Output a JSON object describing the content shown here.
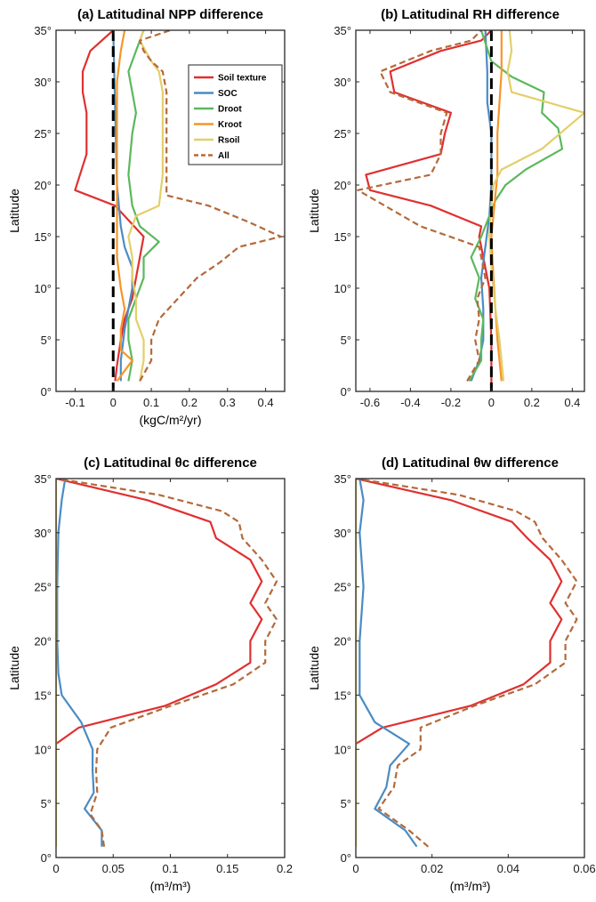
{
  "colors": {
    "soil_texture": "#e03030",
    "soc": "#4a8cc4",
    "droot": "#5cb85c",
    "kroot": "#f5962a",
    "rsoil": "#e3cf6a",
    "all": "#b5693a",
    "zero_line": "#000000"
  },
  "legend": {
    "entries": [
      {
        "key": "soil_texture",
        "label": "Soil texture",
        "style": "solid"
      },
      {
        "key": "soc",
        "label": "SOC",
        "style": "solid"
      },
      {
        "key": "droot",
        "label": "Droot",
        "style": "solid"
      },
      {
        "key": "kroot",
        "label": "Kroot",
        "style": "solid"
      },
      {
        "key": "rsoil",
        "label": "Rsoil",
        "style": "solid"
      },
      {
        "key": "all",
        "label": "All",
        "style": "dashed"
      }
    ]
  },
  "chart_data": [
    {
      "type": "line",
      "title": "(a) Latitudinal NPP difference",
      "xlabel": "(kgC/m²/yr)",
      "ylabel": "Latitude",
      "xlim": [
        -0.15,
        0.45
      ],
      "ylim": [
        0,
        35
      ],
      "xticks": [
        -0.1,
        0,
        0.1,
        0.2,
        0.3,
        0.4
      ],
      "xtick_labels": [
        "-0.1",
        "0",
        "0.1",
        "0.2",
        "0.3",
        "0.4"
      ],
      "yticks": [
        0,
        5,
        10,
        15,
        20,
        25,
        30,
        35
      ],
      "ytick_labels": [
        "0°",
        "5°",
        "10°",
        "15°",
        "20°",
        "25°",
        "30°",
        "35°"
      ],
      "zero_line": true,
      "legend": true,
      "series": [
        {
          "key": "soil_texture",
          "x": [
            0.005,
            0.01,
            0.02,
            0.03,
            0.05,
            0.06,
            0.08,
            0.005,
            -0.1,
            -0.07,
            -0.07,
            -0.08,
            -0.08,
            -0.06,
            0.0
          ],
          "y": [
            1,
            2.5,
            5,
            7,
            9,
            11,
            15,
            18,
            19.5,
            23,
            27,
            29,
            31,
            33,
            35
          ]
        },
        {
          "key": "soc",
          "x": [
            0.02,
            0.02,
            0.03,
            0.04,
            0.05,
            0.05,
            0.03,
            0.02,
            0.01,
            0.0
          ],
          "y": [
            1,
            3,
            6,
            8,
            10,
            12,
            14,
            16,
            20,
            35
          ]
        },
        {
          "key": "droot",
          "x": [
            0.04,
            0.05,
            0.04,
            0.04,
            0.06,
            0.08,
            0.08,
            0.12,
            0.07,
            0.05,
            0.04,
            0.05,
            0.06,
            0.05,
            0.04,
            0.06,
            0.07,
            0.08
          ],
          "y": [
            1,
            3,
            5,
            7,
            9,
            11,
            13,
            14.5,
            16,
            18,
            21,
            25,
            27,
            29,
            31,
            33,
            34,
            35
          ]
        },
        {
          "key": "kroot",
          "x": [
            0.01,
            0.03,
            0.05,
            0.02,
            0.02,
            0.03,
            0.02,
            0.01,
            0.01,
            0.01,
            0.02,
            0.03
          ],
          "y": [
            1,
            2,
            3,
            4,
            6,
            8,
            10,
            13,
            20,
            30,
            33,
            35
          ]
        },
        {
          "key": "rsoil",
          "x": [
            0.07,
            0.08,
            0.08,
            0.06,
            0.06,
            0.05,
            0.05,
            0.04,
            0.06,
            0.12,
            0.13,
            0.13,
            0.13,
            0.13,
            0.12,
            0.1,
            0.07,
            0.08
          ],
          "y": [
            1,
            3,
            5,
            7,
            9,
            11,
            13,
            15,
            17,
            18,
            21,
            25,
            27,
            29,
            31,
            32,
            34,
            35
          ]
        },
        {
          "key": "all",
          "x": [
            0.07,
            0.1,
            0.1,
            0.12,
            0.17,
            0.22,
            0.28,
            0.33,
            0.44,
            0.35,
            0.25,
            0.14,
            0.14,
            0.14,
            0.14,
            0.14,
            0.14,
            0.13,
            0.1,
            0.08,
            0.07,
            0.15
          ],
          "y": [
            1,
            3,
            5,
            7,
            9,
            11,
            12.5,
            14,
            15,
            16.5,
            18,
            19,
            21,
            23,
            25,
            27,
            29,
            31,
            32,
            33,
            34,
            35
          ]
        }
      ]
    },
    {
      "type": "line",
      "title": "(b) Latitudinal RH difference",
      "xlabel": "",
      "ylabel": "Latitude",
      "xlim": [
        -0.67,
        0.46
      ],
      "ylim": [
        0,
        35
      ],
      "xticks": [
        -0.6,
        -0.4,
        -0.2,
        0,
        0.2,
        0.4
      ],
      "xtick_labels": [
        "-0.6",
        "-0.4",
        "-0.2",
        "0",
        "0.2",
        "0.4"
      ],
      "yticks": [
        0,
        5,
        10,
        15,
        20,
        25,
        30,
        35
      ],
      "ytick_labels": [
        "0°",
        "5°",
        "10°",
        "15°",
        "20°",
        "25°",
        "30°",
        "35°"
      ],
      "zero_line": true,
      "legend": false,
      "series": [
        {
          "key": "soil_texture",
          "x": [
            0.0,
            0.0,
            -0.01,
            -0.03,
            -0.05,
            -0.06,
            -0.05,
            -0.3,
            -0.6,
            -0.62,
            -0.25,
            -0.23,
            -0.2,
            -0.48,
            -0.5,
            -0.25,
            -0.05,
            0.0
          ],
          "y": [
            0,
            5,
            10,
            12,
            14,
            15,
            16,
            18,
            19.5,
            21,
            23,
            25,
            27,
            29,
            31,
            33,
            34,
            35
          ]
        },
        {
          "key": "soc",
          "x": [
            -0.1,
            -0.06,
            -0.04,
            -0.04,
            -0.05,
            -0.03,
            -0.01,
            0.0,
            0.0,
            0.0,
            -0.02,
            -0.02,
            -0.02,
            -0.03
          ],
          "y": [
            1,
            3,
            5,
            8,
            11,
            14,
            17,
            20,
            22,
            25,
            28,
            30,
            31,
            35
          ]
        },
        {
          "key": "droot",
          "x": [
            -0.11,
            -0.05,
            -0.05,
            -0.04,
            -0.08,
            -0.06,
            -0.1,
            -0.05,
            -0.01,
            0.02,
            0.07,
            0.17,
            0.35,
            0.33,
            0.25,
            0.26,
            0.1,
            0.0,
            -0.05
          ],
          "y": [
            1,
            3,
            5,
            7,
            9,
            11,
            13,
            15,
            17,
            18.5,
            20,
            21.5,
            23.5,
            25.5,
            27,
            29,
            30.5,
            32,
            35
          ]
        },
        {
          "key": "kroot",
          "x": [
            0.05,
            0.04,
            0.03,
            0.02,
            0.01,
            0.0,
            0.02,
            0.03,
            0.03,
            0.04,
            0.05,
            0.05,
            0.05
          ],
          "y": [
            1,
            3,
            5,
            8,
            11,
            15,
            19,
            21,
            25,
            28,
            31,
            33,
            35
          ]
        },
        {
          "key": "rsoil",
          "x": [
            0.06,
            0.05,
            0.04,
            0.02,
            0.0,
            -0.01,
            0.0,
            0.01,
            0.05,
            0.25,
            0.37,
            0.46,
            0.1,
            0.08,
            0.1,
            0.09
          ],
          "y": [
            1,
            3,
            5,
            8,
            12,
            15,
            18,
            20,
            21.5,
            23.5,
            25.5,
            27,
            29,
            31,
            33,
            35
          ]
        },
        {
          "key": "all",
          "x": [
            -0.12,
            -0.06,
            -0.08,
            -0.06,
            -0.07,
            -0.03,
            -0.06,
            -0.35,
            -0.66,
            -0.3,
            -0.25,
            -0.25,
            -0.22,
            -0.5,
            -0.55,
            -0.3,
            -0.1,
            -0.05
          ],
          "y": [
            1,
            3,
            5,
            7,
            9,
            11,
            14,
            16,
            19.5,
            21,
            23,
            25,
            27,
            29,
            31,
            33,
            34,
            35
          ]
        }
      ]
    },
    {
      "type": "line",
      "title": "(c) Latitudinal θc difference",
      "xlabel": "(m³/m³)",
      "ylabel": "Latitude",
      "xlim": [
        0,
        0.2
      ],
      "ylim": [
        0,
        35
      ],
      "xticks": [
        0,
        0.05,
        0.1,
        0.15,
        0.2
      ],
      "xtick_labels": [
        "0",
        "0.05",
        "0.1",
        "0.15",
        "0.2"
      ],
      "yticks": [
        0,
        5,
        10,
        15,
        20,
        25,
        30,
        35
      ],
      "ytick_labels": [
        "0°",
        "5°",
        "10°",
        "15°",
        "20°",
        "25°",
        "30°",
        "35°"
      ],
      "zero_line": false,
      "legend": false,
      "series": [
        {
          "key": "soil_texture",
          "x": [
            0.0,
            0.02,
            0.095,
            0.14,
            0.17,
            0.17,
            0.18,
            0.17,
            0.18,
            0.17,
            0.14,
            0.135,
            0.08,
            0.0
          ],
          "y": [
            10.5,
            12,
            14,
            16,
            18,
            20,
            22,
            23.5,
            25.5,
            27.5,
            29.5,
            31,
            33,
            35
          ]
        },
        {
          "key": "soc",
          "x": [
            0.04,
            0.04,
            0.025,
            0.033,
            0.032,
            0.032,
            0.022,
            0.005,
            0.002,
            0.001,
            0.001,
            0.002,
            0.005,
            0.008
          ],
          "y": [
            1,
            2.5,
            4.5,
            6,
            8,
            10,
            12.5,
            15,
            17,
            20,
            25,
            30,
            33,
            35
          ]
        },
        {
          "key": "rsoil",
          "x": [
            0.0,
            0.0
          ],
          "y": [
            1,
            35
          ]
        },
        {
          "key": "all",
          "x": [
            0.042,
            0.04,
            0.03,
            0.036,
            0.035,
            0.036,
            0.048,
            0.1,
            0.155,
            0.183,
            0.183,
            0.193,
            0.183,
            0.193,
            0.18,
            0.163,
            0.16,
            0.145,
            0.09,
            0.0
          ],
          "y": [
            1,
            2.5,
            4,
            6,
            8,
            10,
            12,
            14,
            16,
            18,
            20,
            22,
            23.5,
            25.5,
            27.5,
            29.5,
            31,
            32,
            33.5,
            35
          ]
        }
      ]
    },
    {
      "type": "line",
      "title": "(d) Latitudinal θw difference",
      "xlabel": "(m³/m³)",
      "ylabel": "Latitude",
      "xlim": [
        0,
        0.06
      ],
      "ylim": [
        0,
        35
      ],
      "xticks": [
        0,
        0.02,
        0.04,
        0.06
      ],
      "xtick_labels": [
        "0",
        "0.02",
        "0.04",
        "0.06"
      ],
      "yticks": [
        0,
        5,
        10,
        15,
        20,
        25,
        30,
        35
      ],
      "ytick_labels": [
        "0°",
        "5°",
        "10°",
        "15°",
        "20°",
        "25°",
        "30°",
        "35°"
      ],
      "zero_line": false,
      "legend": false,
      "series": [
        {
          "key": "soil_texture",
          "x": [
            0.0,
            0.007,
            0.03,
            0.044,
            0.051,
            0.051,
            0.054,
            0.051,
            0.054,
            0.051,
            0.045,
            0.041,
            0.025,
            0.0
          ],
          "y": [
            10.5,
            12,
            14,
            16,
            18,
            20,
            22,
            23.5,
            25.5,
            27.5,
            29.5,
            31,
            33,
            35
          ]
        },
        {
          "key": "soc",
          "x": [
            0.016,
            0.013,
            0.005,
            0.008,
            0.009,
            0.014,
            0.005,
            0.001,
            0.001,
            0.001,
            0.002,
            0.001,
            0.002,
            0.001
          ],
          "y": [
            1,
            2.5,
            4.5,
            6.5,
            8.5,
            10.5,
            12.5,
            15,
            17,
            20,
            25,
            30,
            33,
            35
          ]
        },
        {
          "key": "rsoil",
          "x": [
            0.0,
            0.0
          ],
          "y": [
            1,
            35
          ]
        },
        {
          "key": "all",
          "x": [
            0.019,
            0.014,
            0.006,
            0.01,
            0.011,
            0.017,
            0.017,
            0.031,
            0.047,
            0.055,
            0.055,
            0.058,
            0.055,
            0.058,
            0.054,
            0.049,
            0.047,
            0.042,
            0.027,
            0.0
          ],
          "y": [
            1,
            2.5,
            4.5,
            6.5,
            8.5,
            10,
            12,
            14,
            16,
            18,
            20,
            22,
            23.5,
            25.5,
            27.5,
            29.5,
            31,
            32,
            33.5,
            35
          ]
        }
      ]
    }
  ]
}
